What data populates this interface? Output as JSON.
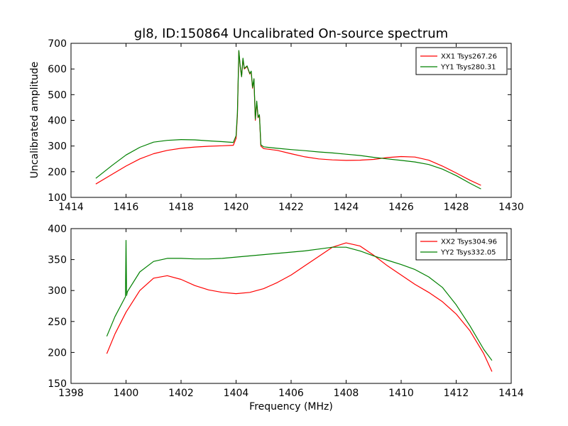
{
  "figure": {
    "title": "gl8, ID:150864 Uncalibrated On-source spectrum",
    "xlabel": "Frequency (MHz)",
    "ylabel": "Uncalibrated amplitude"
  },
  "colors": {
    "red": "#ff0000",
    "green": "#008000"
  },
  "chart_data": [
    {
      "type": "line",
      "title": "gl8, ID:150864 Uncalibrated On-source spectrum",
      "xlabel": "",
      "ylabel": "Uncalibrated amplitude",
      "xlim": [
        1414,
        1430
      ],
      "ylim": [
        100,
        700
      ],
      "xticks": [
        1414,
        1416,
        1418,
        1420,
        1422,
        1424,
        1426,
        1428,
        1430
      ],
      "yticks": [
        100,
        200,
        300,
        400,
        500,
        600,
        700
      ],
      "legend_position": "top-right",
      "series": [
        {
          "name": "XX1 Tsys267.26",
          "color": "#ff0000",
          "x": [
            1414.9,
            1415.5,
            1416.0,
            1416.5,
            1417.0,
            1417.5,
            1418.0,
            1418.5,
            1419.0,
            1419.5,
            1419.9,
            1420.0,
            1420.05,
            1420.1,
            1420.15,
            1420.2,
            1420.25,
            1420.3,
            1420.35,
            1420.4,
            1420.45,
            1420.5,
            1420.55,
            1420.6,
            1420.65,
            1420.7,
            1420.75,
            1420.8,
            1420.85,
            1420.9,
            1421.0,
            1421.5,
            1422.0,
            1422.5,
            1423.0,
            1423.5,
            1424.0,
            1424.5,
            1425.0,
            1425.5,
            1426.0,
            1426.5,
            1427.0,
            1427.5,
            1428.0,
            1428.5,
            1428.9
          ],
          "values": [
            152,
            190,
            222,
            250,
            270,
            283,
            291,
            296,
            299,
            301,
            303,
            330,
            420,
            670,
            610,
            570,
            640,
            600,
            605,
            610,
            595,
            580,
            590,
            525,
            560,
            400,
            470,
            410,
            420,
            300,
            290,
            283,
            270,
            258,
            250,
            246,
            244,
            245,
            248,
            255,
            259,
            257,
            245,
            222,
            195,
            167,
            147
          ]
        },
        {
          "name": "YY1 Tsys280.31",
          "color": "#008000",
          "x": [
            1414.9,
            1415.5,
            1416.0,
            1416.5,
            1417.0,
            1417.5,
            1418.0,
            1418.5,
            1419.0,
            1419.5,
            1419.9,
            1420.0,
            1420.05,
            1420.1,
            1420.15,
            1420.2,
            1420.25,
            1420.3,
            1420.35,
            1420.4,
            1420.45,
            1420.5,
            1420.55,
            1420.6,
            1420.65,
            1420.7,
            1420.75,
            1420.8,
            1420.85,
            1420.9,
            1421.0,
            1421.5,
            1422.0,
            1422.5,
            1423.0,
            1423.5,
            1424.0,
            1424.5,
            1425.0,
            1425.5,
            1426.0,
            1426.5,
            1427.0,
            1427.5,
            1428.0,
            1428.5,
            1428.9
          ],
          "values": [
            174,
            225,
            265,
            295,
            315,
            322,
            325,
            324,
            320,
            317,
            314,
            340,
            430,
            672,
            612,
            570,
            642,
            602,
            607,
            612,
            597,
            582,
            592,
            528,
            562,
            405,
            475,
            412,
            422,
            305,
            297,
            291,
            286,
            282,
            277,
            273,
            268,
            263,
            256,
            250,
            244,
            238,
            228,
            210,
            185,
            155,
            133
          ]
        }
      ]
    },
    {
      "type": "line",
      "title": "",
      "xlabel": "Frequency (MHz)",
      "ylabel": "",
      "xlim": [
        1398,
        1414
      ],
      "ylim": [
        150,
        400
      ],
      "xticks": [
        1398,
        1400,
        1402,
        1404,
        1406,
        1408,
        1410,
        1412,
        1414
      ],
      "yticks": [
        150,
        200,
        250,
        300,
        350,
        400
      ],
      "legend_position": "top-right",
      "series": [
        {
          "name": "XX2 Tsys304.96",
          "color": "#ff0000",
          "x": [
            1399.3,
            1399.6,
            1400.0,
            1400.5,
            1401.0,
            1401.5,
            1402.0,
            1402.5,
            1403.0,
            1403.5,
            1404.0,
            1404.5,
            1405.0,
            1405.5,
            1406.0,
            1406.5,
            1407.0,
            1407.5,
            1408.0,
            1408.5,
            1409.0,
            1409.5,
            1410.0,
            1410.5,
            1411.0,
            1411.5,
            1412.0,
            1412.5,
            1413.0,
            1413.3
          ],
          "values": [
            198,
            230,
            265,
            300,
            320,
            324,
            318,
            308,
            301,
            297,
            295,
            297,
            303,
            313,
            325,
            340,
            355,
            370,
            377,
            372,
            357,
            340,
            325,
            310,
            297,
            282,
            262,
            235,
            198,
            169
          ]
        },
        {
          "name": "YY2 Tsys332.05",
          "color": "#008000",
          "x": [
            1399.3,
            1399.6,
            1399.98,
            1400.0,
            1400.02,
            1400.05,
            1400.5,
            1401.0,
            1401.5,
            1402.0,
            1402.5,
            1403.0,
            1403.5,
            1404.0,
            1404.5,
            1405.0,
            1405.5,
            1406.0,
            1406.5,
            1407.0,
            1407.5,
            1408.0,
            1408.5,
            1409.0,
            1409.5,
            1410.0,
            1410.5,
            1411.0,
            1411.5,
            1412.0,
            1412.5,
            1413.0,
            1413.3
          ],
          "values": [
            226,
            258,
            290,
            381,
            292,
            298,
            330,
            347,
            352,
            352,
            351,
            351,
            352,
            354,
            356,
            358,
            360,
            362,
            364,
            367,
            370,
            370,
            364,
            356,
            349,
            342,
            334,
            322,
            305,
            277,
            243,
            205,
            187
          ]
        }
      ]
    }
  ]
}
